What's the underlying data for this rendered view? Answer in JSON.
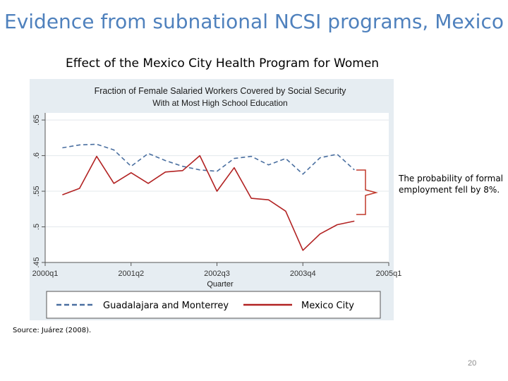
{
  "slide": {
    "title": "Evidence from subnational NCSI programs, Mexico",
    "subtitle": "Effect of the Mexico City Health Program for Women",
    "annotation": "The probability of formal employment fell by 8%.",
    "source": "Source: Juárez (2008).",
    "page_number": "20"
  },
  "chart_data": {
    "type": "line",
    "title": "Fraction of Female Salaried Workers Covered by Social Security",
    "subtitle": "With at Most High School Education",
    "xlabel": "Quarter",
    "ylabel": "",
    "xlim": [
      0,
      20
    ],
    "ylim": [
      0.45,
      0.66
    ],
    "x_ticks": [
      {
        "x": 0,
        "label": "2000q1"
      },
      {
        "x": 5,
        "label": "2001q2"
      },
      {
        "x": 10,
        "label": "2002q3"
      },
      {
        "x": 15,
        "label": "2003q4"
      },
      {
        "x": 20,
        "label": "2005q1"
      }
    ],
    "y_ticks": [
      {
        "y": 0.45,
        "label": ".45"
      },
      {
        "y": 0.5,
        "label": ".5"
      },
      {
        "y": 0.55,
        "label": ".55"
      },
      {
        "y": 0.6,
        "label": ".6"
      },
      {
        "y": 0.65,
        "label": ".65"
      }
    ],
    "grid": true,
    "legend_position": "bottom",
    "series": [
      {
        "name": "Guadalajara and Monterrey",
        "color": "#4a6fa0",
        "style": "dashed",
        "x": [
          1,
          2,
          3,
          4,
          5,
          6,
          7,
          8,
          9,
          10,
          11,
          12,
          13,
          14,
          15,
          16,
          17,
          18
        ],
        "values": [
          0.611,
          0.615,
          0.616,
          0.608,
          0.585,
          0.603,
          0.593,
          0.585,
          0.58,
          0.578,
          0.596,
          0.599,
          0.587,
          0.596,
          0.574,
          0.597,
          0.602,
          0.58
        ]
      },
      {
        "name": "Mexico City",
        "color": "#b22222",
        "style": "solid",
        "x": [
          1,
          2,
          3,
          4,
          5,
          6,
          7,
          8,
          9,
          10,
          11,
          12,
          13,
          14,
          15,
          16,
          17,
          18
        ],
        "values": [
          0.545,
          0.554,
          0.599,
          0.561,
          0.576,
          0.561,
          0.577,
          0.579,
          0.6,
          0.55,
          0.583,
          0.54,
          0.538,
          0.522,
          0.467,
          0.49,
          0.503,
          0.508
        ]
      }
    ]
  }
}
